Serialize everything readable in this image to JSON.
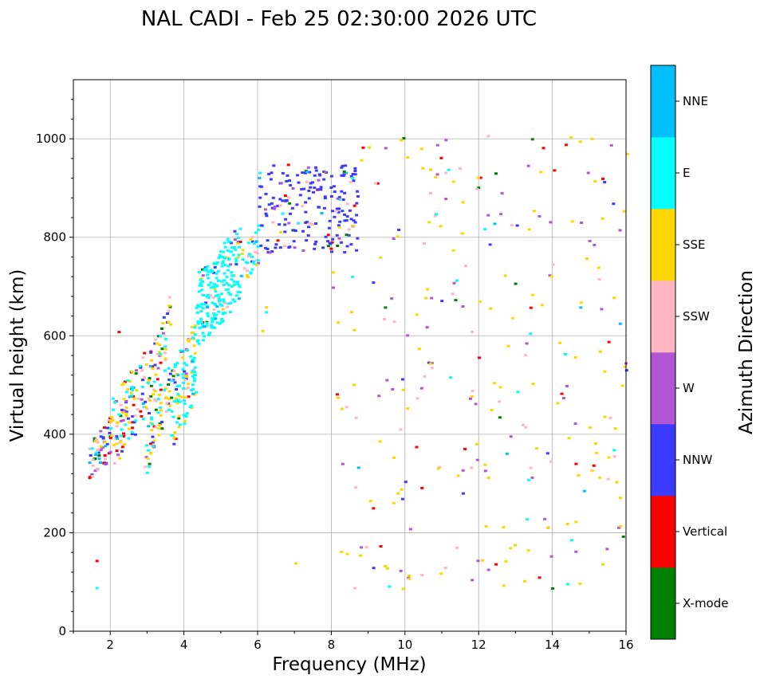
{
  "chart_data": {
    "type": "scatter",
    "title": "NAL CADI - Feb 25 02:30:00 2026 UTC",
    "xlabel": "Frequency (MHz)",
    "ylabel": "Virtual height (km)",
    "xlim": [
      1,
      16
    ],
    "ylim": [
      0,
      1120
    ],
    "xticks": [
      2,
      4,
      6,
      8,
      10,
      12,
      14,
      16
    ],
    "yticks": [
      0,
      200,
      400,
      600,
      800,
      1000
    ],
    "grid": true,
    "colorbar": {
      "label": "Azimuth Direction",
      "categories": [
        {
          "name": "X-mode",
          "color": "#008000"
        },
        {
          "name": "Vertical",
          "color": "#ff0000"
        },
        {
          "name": "NNW",
          "color": "#3b3bff"
        },
        {
          "name": "W",
          "color": "#b256d6"
        },
        {
          "name": "SSW",
          "color": "#ffb6c1"
        },
        {
          "name": "SSE",
          "color": "#ffd700"
        },
        {
          "name": "E",
          "color": "#00ffff"
        },
        {
          "name": "NNE",
          "color": "#00bfff"
        }
      ]
    },
    "bands": [
      {
        "f": [
          1.4,
          2.0
        ],
        "h": [
          300,
          440
        ],
        "counts": [
          6,
          10,
          12,
          8,
          10,
          6,
          3,
          5
        ]
      },
      {
        "f": [
          2.0,
          2.9
        ],
        "h": [
          330,
          570
        ],
        "counts": [
          3,
          12,
          18,
          8,
          12,
          24,
          20,
          3
        ]
      },
      {
        "f": [
          2.9,
          3.6
        ],
        "h": [
          310,
          690
        ],
        "counts": [
          12,
          8,
          14,
          6,
          16,
          38,
          22,
          2
        ]
      },
      {
        "f": [
          3.6,
          4.3
        ],
        "h": [
          360,
          650
        ],
        "counts": [
          4,
          3,
          6,
          4,
          8,
          28,
          55,
          4
        ]
      },
      {
        "f": [
          4.3,
          5.5
        ],
        "h": [
          570,
          830
        ],
        "counts": [
          2,
          2,
          8,
          4,
          10,
          10,
          170,
          6
        ]
      },
      {
        "f": [
          5.5,
          6.0
        ],
        "h": [
          700,
          830
        ],
        "counts": [
          0,
          0,
          2,
          2,
          8,
          6,
          18,
          2
        ]
      },
      {
        "f": [
          6.0,
          8.7
        ],
        "h": [
          770,
          950
        ],
        "counts": [
          6,
          8,
          150,
          14,
          10,
          2,
          4,
          4
        ]
      },
      {
        "f": [
          8.0,
          16.0
        ],
        "h": [
          80,
          1010
        ],
        "counts": [
          12,
          22,
          16,
          58,
          42,
          115,
          16,
          6
        ]
      }
    ],
    "isolated": [
      {
        "f": 1.6,
        "h": 90,
        "dir": "E"
      },
      {
        "f": 1.6,
        "h": 145,
        "dir": "Vertical"
      },
      {
        "f": 2.2,
        "h": 610,
        "dir": "Vertical"
      },
      {
        "f": 6.1,
        "h": 612,
        "dir": "SSE"
      },
      {
        "f": 6.2,
        "h": 660,
        "dir": "SSE"
      },
      {
        "f": 6.2,
        "h": 650,
        "dir": "E"
      },
      {
        "f": 7.0,
        "h": 140,
        "dir": "SSE"
      },
      {
        "f": 8.6,
        "h": 90,
        "dir": "SSW"
      }
    ]
  }
}
